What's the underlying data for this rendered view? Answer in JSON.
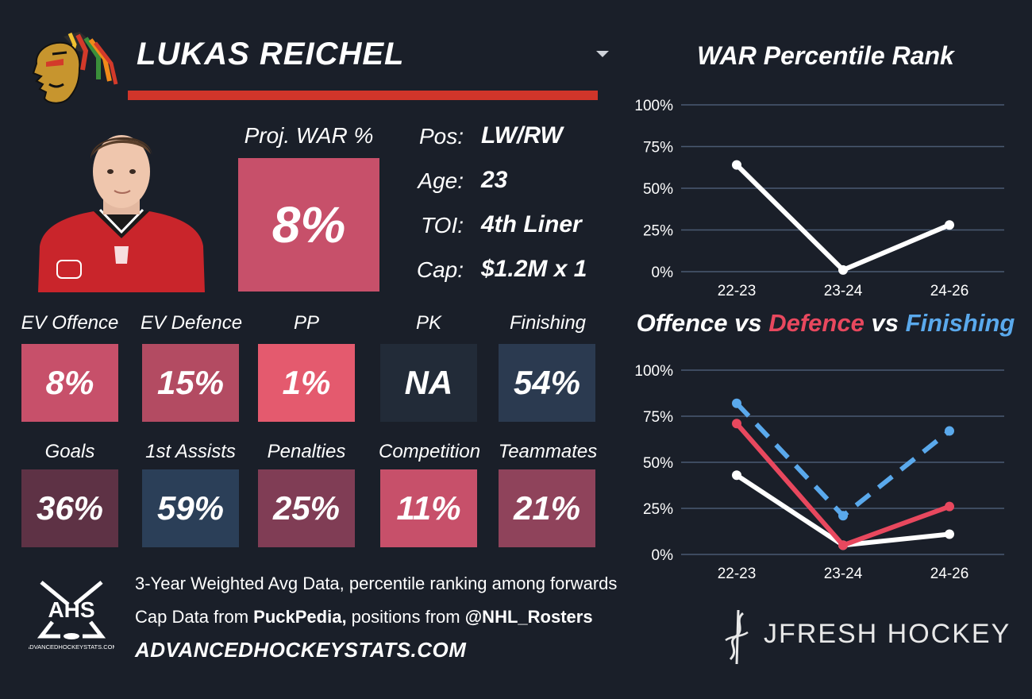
{
  "player": {
    "name": "LUKAS REICHEL",
    "proj_war_label": "Proj. WAR %",
    "proj_war_value": "8%",
    "proj_war_color": "#c7506a"
  },
  "info": [
    {
      "key": "Pos:",
      "value": "LW/RW"
    },
    {
      "key": "Age:",
      "value": "23"
    },
    {
      "key": "TOI:",
      "value": "4th Liner"
    },
    {
      "key": "Cap:",
      "value": "$1.2M x 1"
    }
  ],
  "tiles_row1": [
    {
      "label": "EV Offence",
      "value": "8%",
      "color": "#c7506a"
    },
    {
      "label": "EV Defence",
      "value": "15%",
      "color": "#b34b62"
    },
    {
      "label": "PP",
      "value": "1%",
      "color": "#e45a6e"
    },
    {
      "label": "PK",
      "value": "NA",
      "color": "#222b38"
    },
    {
      "label": "Finishing",
      "value": "54%",
      "color": "#2b3a50"
    }
  ],
  "tiles_row2": [
    {
      "label": "Goals",
      "value": "36%",
      "color": "#5e3245"
    },
    {
      "label": "1st Assists",
      "value": "59%",
      "color": "#2b3f58"
    },
    {
      "label": "Penalties",
      "value": "25%",
      "color": "#803d55"
    },
    {
      "label": "Competition",
      "value": "11%",
      "color": "#c7506a"
    },
    {
      "label": "Teammates",
      "value": "21%",
      "color": "#8f435b"
    }
  ],
  "footer": {
    "line1": "3-Year Weighted Avg Data, percentile ranking among forwards",
    "line2_prefix": "Cap Data from ",
    "line2_source1": "PuckPedia,",
    "line2_middle": " positions from ",
    "line2_source2": "@NHL_Rosters",
    "site_url": "ADVANCEDHOCKEYSTATS.COM",
    "ahs_logo_text": "AHS",
    "ahs_logo_subtext": "ADVANCEDHOCKEYSTATS.COM",
    "jfresh_text": "JFRESH HOCKEY"
  },
  "chart_data": [
    {
      "type": "line",
      "title": "WAR Percentile Rank",
      "categories": [
        "22-23",
        "23-24",
        "24-26"
      ],
      "y_ticks": [
        "100%",
        "75%",
        "50%",
        "25%",
        "0%"
      ],
      "ylim": [
        0,
        100
      ],
      "grid": true,
      "series": [
        {
          "values": [
            64,
            1,
            28
          ],
          "color": "#ffffff",
          "dashed": false
        }
      ]
    },
    {
      "type": "line",
      "title_parts": [
        {
          "text": "Offence",
          "color": "#ffffff"
        },
        {
          "text": " vs ",
          "color": "#ffffff"
        },
        {
          "text": "Defence",
          "color": "#e8485e"
        },
        {
          "text": " vs ",
          "color": "#ffffff"
        },
        {
          "text": "Finishing",
          "color": "#5aa9ec"
        }
      ],
      "categories": [
        "22-23",
        "23-24",
        "24-26"
      ],
      "y_ticks": [
        "100%",
        "75%",
        "50%",
        "25%",
        "0%"
      ],
      "ylim": [
        0,
        100
      ],
      "grid": true,
      "series": [
        {
          "name": "Offence",
          "values": [
            43,
            5,
            11
          ],
          "color": "#ffffff",
          "dashed": false
        },
        {
          "name": "Defence",
          "values": [
            71,
            5,
            26
          ],
          "color": "#e8485e",
          "dashed": false
        },
        {
          "name": "Finishing",
          "values": [
            82,
            21,
            67
          ],
          "color": "#5aa9ec",
          "dashed": true
        }
      ]
    }
  ]
}
